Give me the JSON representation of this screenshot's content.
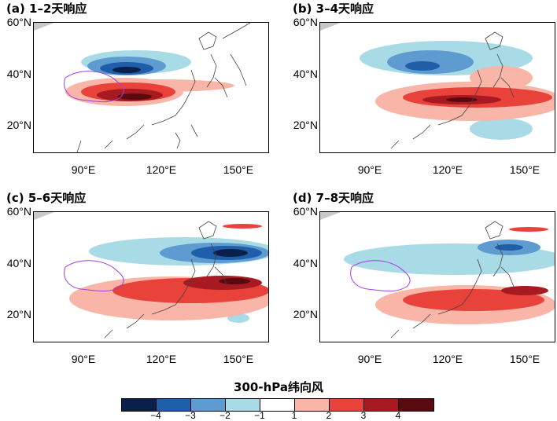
{
  "panels": [
    {
      "title": "(a) 1–2天响应"
    },
    {
      "title": "(b) 3–4天响应"
    },
    {
      "title": "(c) 5–6天响应"
    },
    {
      "title": "(d) 7–8天响应"
    }
  ],
  "axes": {
    "lat_labels": [
      "60°N",
      "40°N",
      "20°N"
    ],
    "lon_labels": [
      "90°E",
      "120°E",
      "150°E"
    ]
  },
  "colorbar": {
    "title": "300-hPa纬向风",
    "labels": [
      "−4",
      "−3",
      "−2",
      "−1",
      "1",
      "2",
      "3",
      "4"
    ],
    "colors": [
      "#0a1f4a",
      "#1f5ea8",
      "#5d9bd1",
      "#a9dbe6",
      "#ffffff",
      "#f8b5a8",
      "#e8423a",
      "#a81a22",
      "#5a0a0f"
    ]
  },
  "colors": {
    "coast": "#444444",
    "plateau": "#a040e0",
    "corner_gray": "#c8c8c8"
  }
}
